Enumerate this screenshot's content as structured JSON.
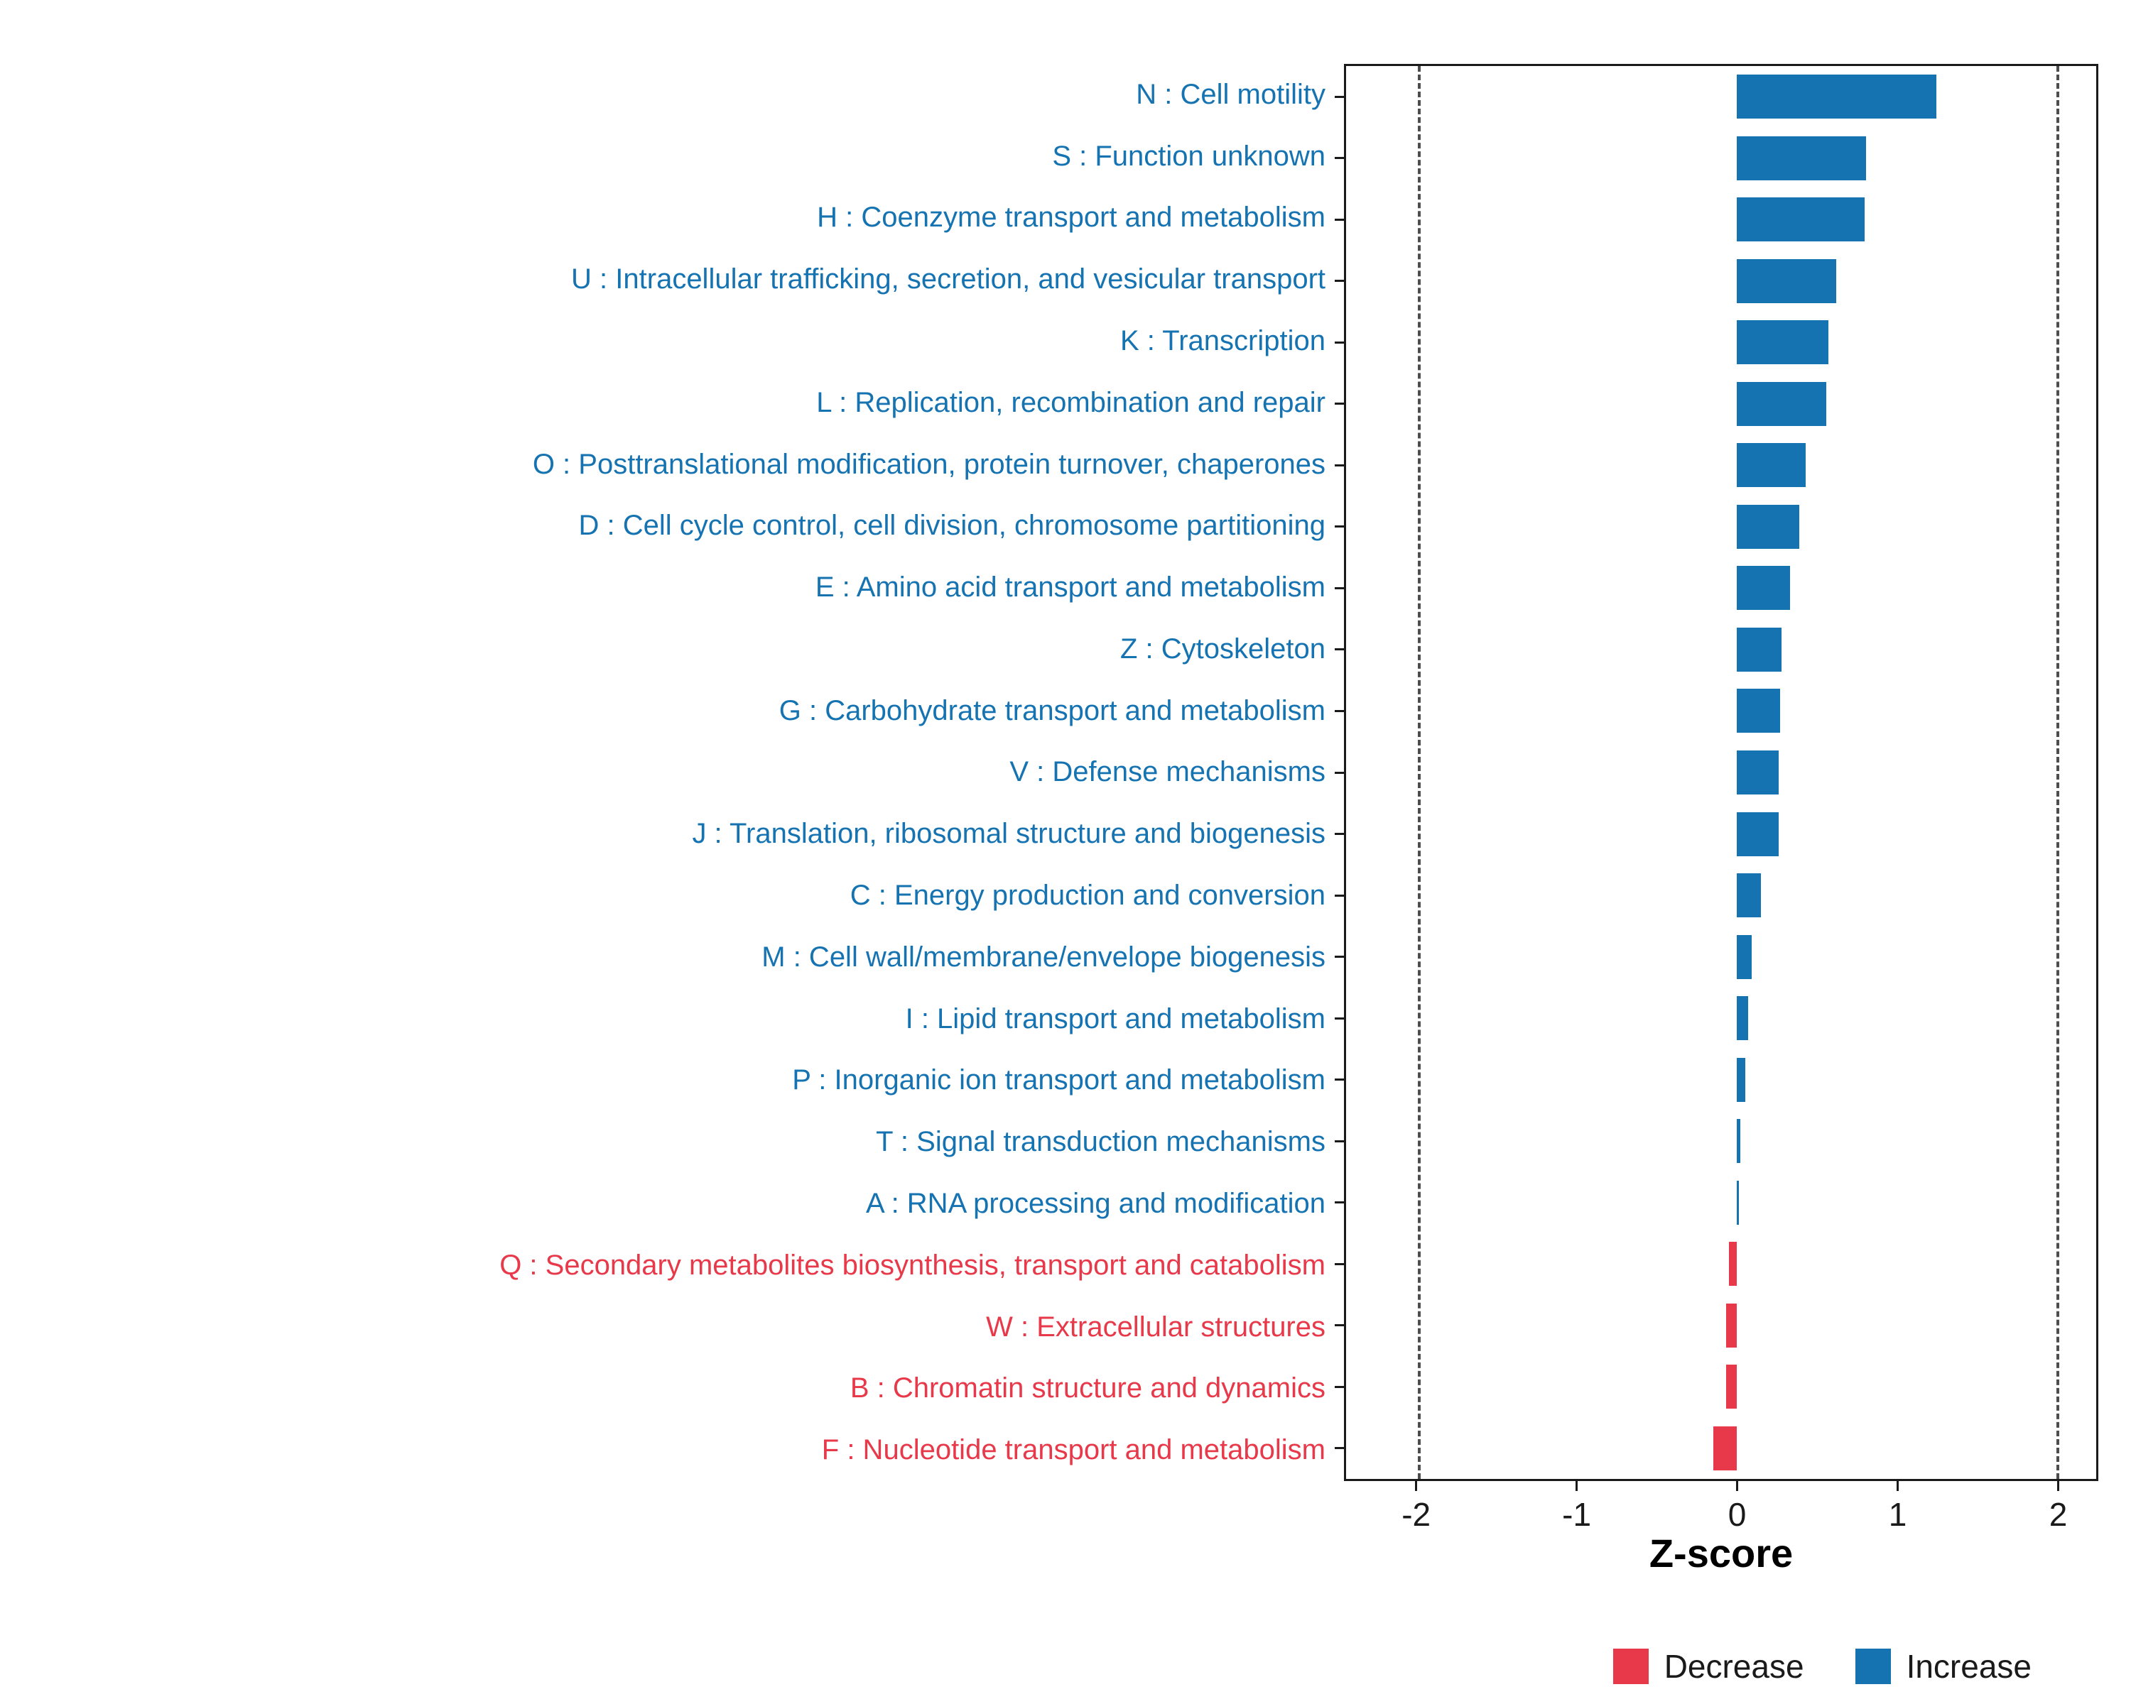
{
  "chart_data": {
    "type": "bar",
    "orientation": "horizontal",
    "title": "",
    "xlabel": "Z-score",
    "ylabel": "",
    "xlim": [
      -2.45,
      2.25
    ],
    "x_ticks": [
      -2,
      -1,
      0,
      1,
      2
    ],
    "reference_lines": [
      -2,
      2
    ],
    "grid": false,
    "legend_position": "bottom-right",
    "legend": [
      {
        "key": "decrease",
        "label": "Decrease",
        "color": "#E8394A"
      },
      {
        "key": "increase",
        "label": "Increase",
        "color": "#1673B1"
      }
    ],
    "categories": [
      "N : Cell motility",
      "S : Function unknown",
      "H : Coenzyme transport and metabolism",
      "U : Intracellular trafficking, secretion, and vesicular transport",
      "K : Transcription",
      "L : Replication, recombination and repair",
      "O : Posttranslational modification, protein turnover, chaperones",
      "D : Cell cycle control, cell division, chromosome partitioning",
      "E : Amino acid transport and metabolism",
      "Z : Cytoskeleton",
      "G : Carbohydrate transport and metabolism",
      "V : Defense mechanisms",
      "J : Translation, ribosomal structure and biogenesis",
      "C : Energy production and conversion",
      "M : Cell wall/membrane/envelope biogenesis",
      "I : Lipid transport and metabolism",
      "P : Inorganic ion transport and metabolism",
      "T : Signal transduction mechanisms",
      "A : RNA processing and modification",
      "Q : Secondary metabolites biosynthesis, transport and catabolism",
      "W : Extracellular structures",
      "B : Chromatin structure and dynamics",
      "F : Nucleotide transport and metabolism"
    ],
    "values": [
      1.25,
      0.81,
      0.8,
      0.62,
      0.57,
      0.56,
      0.43,
      0.39,
      0.33,
      0.28,
      0.27,
      0.26,
      0.26,
      0.15,
      0.09,
      0.07,
      0.05,
      0.02,
      0.01,
      -0.05,
      -0.07,
      -0.07,
      -0.15
    ],
    "groups": [
      "increase",
      "increase",
      "increase",
      "increase",
      "increase",
      "increase",
      "increase",
      "increase",
      "increase",
      "increase",
      "increase",
      "increase",
      "increase",
      "increase",
      "increase",
      "increase",
      "increase",
      "increase",
      "increase",
      "decrease",
      "decrease",
      "decrease",
      "decrease"
    ]
  },
  "colors": {
    "increase": "#1673B1",
    "decrease": "#E8394A",
    "panel_border": "#1a1a1a",
    "reference_line": "#4d4d4d",
    "axis_text": "#1a1a1a",
    "background": "#ffffff"
  }
}
